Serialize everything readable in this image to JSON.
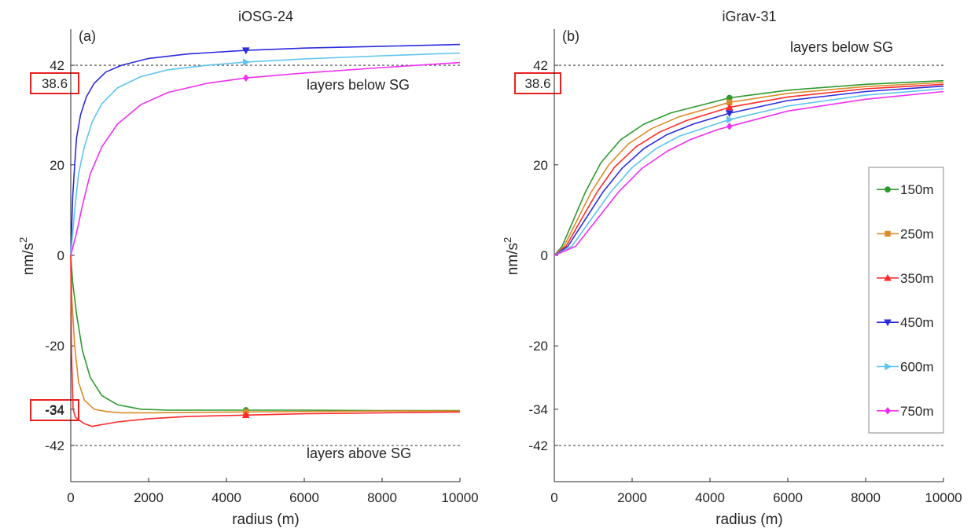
{
  "chart_data": [
    {
      "type": "line",
      "panel_label": "(a)",
      "title": "iOSG-24",
      "xlabel": "radius (m)",
      "ylabel_base": "nm/s",
      "ylabel_sup": "2",
      "xlim": [
        0,
        10000
      ],
      "ylim": [
        -50,
        50
      ],
      "xticks": [
        0,
        2000,
        4000,
        6000,
        8000,
        10000
      ],
      "yticks": [
        -42,
        -34,
        -20,
        0,
        20,
        42
      ],
      "reference_lines": [
        42,
        -42
      ],
      "boxed_labels": [
        "38.6",
        "-34"
      ],
      "annotations": [
        "layers below SG",
        "layers above SG"
      ],
      "grid": false,
      "series": [
        {
          "name": "150m",
          "color": "#2e9a2e",
          "marker": "circle",
          "x": [
            0,
            50,
            150,
            300,
            500,
            800,
            1200,
            1800,
            2500,
            3500,
            4500,
            6000,
            8000,
            10000
          ],
          "y": [
            0,
            -6,
            -13,
            -21,
            -27,
            -31,
            -33,
            -34,
            -34.2,
            -34.2,
            -34.2,
            -34.2,
            -34.3,
            -34.3
          ]
        },
        {
          "name": "250m",
          "color": "#d98c2b",
          "marker": "square",
          "x": [
            0,
            30,
            100,
            200,
            350,
            600,
            900,
            1300,
            2000,
            3000,
            4500,
            6000,
            8000,
            10000
          ],
          "y": [
            0,
            -10,
            -20,
            -28,
            -32,
            -34,
            -34.5,
            -34.8,
            -34.8,
            -34.7,
            -34.6,
            -34.5,
            -34.4,
            -34.4
          ]
        },
        {
          "name": "350m",
          "color": "#ff2a2a",
          "marker": "triangle-up",
          "x": [
            0,
            20,
            60,
            120,
            200,
            350,
            550,
            800,
            1200,
            2000,
            3000,
            4500,
            6000,
            8000,
            10000
          ],
          "y": [
            0,
            -22,
            -34,
            -35.8,
            -36.3,
            -37.2,
            -37.8,
            -37.4,
            -36.8,
            -36.1,
            -35.6,
            -35.3,
            -35.0,
            -34.8,
            -34.6
          ]
        },
        {
          "name": "450m",
          "color": "#2b2bdf",
          "marker": "triangle-down",
          "x": [
            0,
            50,
            100,
            150,
            250,
            400,
            600,
            900,
            1300,
            2000,
            3000,
            4500,
            6000,
            8000,
            10000
          ],
          "y": [
            0,
            13,
            20,
            26,
            31,
            35,
            38,
            40.5,
            42,
            43.5,
            44.5,
            45.3,
            45.8,
            46.2,
            46.6
          ]
        },
        {
          "name": "600m",
          "color": "#5ec4ef",
          "marker": "triangle-right",
          "x": [
            0,
            100,
            200,
            350,
            550,
            800,
            1200,
            1800,
            2500,
            3500,
            4500,
            6000,
            8000,
            10000
          ],
          "y": [
            0,
            10,
            18,
            24,
            29.5,
            33.5,
            37,
            39.5,
            41,
            42,
            42.7,
            43.4,
            44.1,
            44.7
          ]
        },
        {
          "name": "750m",
          "color": "#f030f0",
          "marker": "diamond",
          "x": [
            0,
            150,
            300,
            500,
            800,
            1200,
            1800,
            2500,
            3500,
            4500,
            6000,
            8000,
            10000
          ],
          "y": [
            0,
            5,
            11,
            18,
            24,
            29,
            33.3,
            36,
            38,
            39.2,
            40.3,
            41.5,
            42.6
          ]
        }
      ]
    },
    {
      "type": "line",
      "panel_label": "(b)",
      "title": "iGrav-31",
      "xlabel": "radius (m)",
      "ylabel_base": "nm/s",
      "ylabel_sup": "2",
      "xlim": [
        0,
        10000
      ],
      "ylim": [
        -50,
        50
      ],
      "xticks": [
        0,
        2000,
        4000,
        6000,
        8000,
        10000
      ],
      "yticks": [
        -42,
        -34,
        -20,
        0,
        20,
        42
      ],
      "reference_lines": [
        42,
        -42
      ],
      "boxed_labels": [
        "38.6"
      ],
      "annotations": [
        "layers below SG"
      ],
      "legend_position": "right",
      "grid": false,
      "series": [
        {
          "name": "150m",
          "color": "#2e9a2e",
          "marker": "circle",
          "x": [
            0,
            200,
            500,
            800,
            1200,
            1700,
            2300,
            3000,
            4500,
            6000,
            8000,
            10000
          ],
          "y": [
            0,
            2,
            8,
            14,
            20.5,
            25.5,
            29,
            31.5,
            34.8,
            36.5,
            37.8,
            38.6
          ]
        },
        {
          "name": "250m",
          "color": "#d98c2b",
          "marker": "square",
          "x": [
            0,
            250,
            600,
            950,
            1400,
            1900,
            2500,
            3200,
            4500,
            6000,
            8000,
            10000
          ],
          "y": [
            0,
            2,
            8,
            14,
            20,
            24.6,
            28,
            30.6,
            33.8,
            35.8,
            37.3,
            38.2
          ]
        },
        {
          "name": "350m",
          "color": "#ff2a2a",
          "marker": "triangle-up",
          "x": [
            0,
            300,
            700,
            1100,
            1550,
            2100,
            2700,
            3400,
            4500,
            6000,
            8000,
            10000
          ],
          "y": [
            0,
            2,
            8,
            14,
            19.5,
            24,
            27.2,
            29.8,
            32.7,
            35,
            36.8,
            37.8
          ]
        },
        {
          "name": "450m",
          "color": "#2b2bdf",
          "marker": "triangle-down",
          "x": [
            0,
            350,
            800,
            1250,
            1750,
            2300,
            2900,
            3600,
            4500,
            6000,
            8000,
            10000
          ],
          "y": [
            0,
            2,
            8,
            14,
            19.3,
            23.6,
            26.7,
            29.1,
            31.4,
            34.2,
            36.2,
            37.4
          ]
        },
        {
          "name": "600m",
          "color": "#5ec4ef",
          "marker": "triangle-right",
          "x": [
            0,
            450,
            950,
            1450,
            2000,
            2600,
            3200,
            3900,
            4500,
            6000,
            8000,
            10000
          ],
          "y": [
            0,
            2,
            8,
            14,
            19.4,
            23.5,
            26.3,
            28.3,
            30,
            33,
            35.4,
            36.8
          ]
        },
        {
          "name": "750m",
          "color": "#f030f0",
          "marker": "diamond",
          "x": [
            0,
            550,
            1100,
            1650,
            2250,
            2900,
            3500,
            4200,
            4500,
            6000,
            8000,
            10000
          ],
          "y": [
            0,
            2,
            8,
            14,
            19.2,
            23,
            25.6,
            27.8,
            28.5,
            31.9,
            34.5,
            36.2
          ]
        }
      ]
    }
  ]
}
